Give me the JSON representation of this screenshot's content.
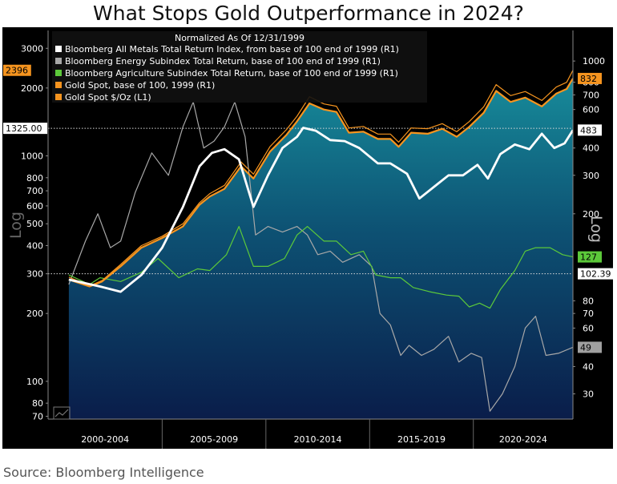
{
  "title": "What Stops Gold Outperformance in 2024?",
  "source": "Source: Bloomberg Intelligence",
  "chart_data": {
    "type": "line",
    "title": "What Stops Gold Outperformance in 2024?",
    "legend_title": "Normalized As Of 12/31/1999",
    "legend_position": "top-left",
    "x_tick_labels": [
      "2000-2004",
      "2005-2009",
      "2010-2014",
      "2015-2019",
      "2020-2024"
    ],
    "x_range": [
      1999.0,
      2024.3
    ],
    "left_axis": {
      "label": "Log",
      "scale": "log",
      "range": [
        68,
        3600
      ],
      "ticks": [
        70,
        80,
        100,
        200,
        300,
        400,
        500,
        600,
        700,
        800,
        1000,
        2000,
        3000
      ],
      "tick_labels": [
        "70",
        "80",
        "100",
        "200",
        "300",
        "400",
        "500",
        "600",
        "700",
        "800",
        "1000",
        "2000",
        "3000"
      ]
    },
    "right_axis": {
      "label": "Log",
      "scale": "log",
      "range": [
        23,
        1380
      ],
      "ticks": [
        30,
        40,
        60,
        70,
        80,
        200,
        300,
        400,
        600,
        700,
        800,
        1000
      ],
      "tick_labels": [
        "30",
        "40",
        "60",
        "70",
        "80",
        "200",
        "300",
        "400",
        "600",
        "700",
        "800",
        "1000"
      ]
    },
    "reference_lines": [
      {
        "axis": "left",
        "value": 1325.0,
        "label": "1325.00"
      },
      {
        "axis": "left",
        "value": 300,
        "label": "102.39"
      }
    ],
    "last_value_labels": [
      {
        "series": "Gold Spot $/Oz",
        "axis": "left",
        "value": 2396,
        "label": "2396",
        "color": "#f5941f",
        "text_color": "#000000"
      },
      {
        "series": "Gold Spot, base of 100",
        "axis": "right",
        "value": 832,
        "label": "832",
        "color": "#f5941f",
        "text_color": "#000000"
      },
      {
        "series": "Bloomberg All Metals Total Return Index",
        "axis": "right",
        "value": 483,
        "label": "483",
        "color": "#ffffff",
        "text_color": "#000000"
      },
      {
        "series": "Bloomberg Agriculture Subindex Total Return",
        "axis": "right",
        "value": 127,
        "label": "127",
        "color": "#5cc93a",
        "text_color": "#000000"
      },
      {
        "series": "Bloomberg Energy Subindex Total Return",
        "axis": "right",
        "value": 49,
        "label": "49",
        "color": "#a0a0a0",
        "text_color": "#000000"
      }
    ],
    "series": [
      {
        "name": "Bloomberg All Metals Total Return Index, from base of 100 end of 1999 (R1)",
        "axis": "right",
        "color": "#ffffff",
        "style": "line-bold",
        "x": [
          2000.0,
          2001.5,
          2002.5,
          2003.5,
          2004.5,
          2005.5,
          2006.3,
          2006.9,
          2007.5,
          2008.2,
          2008.9,
          2009.6,
          2010.3,
          2011.0,
          2011.3,
          2011.9,
          2012.6,
          2013.3,
          2014.0,
          2014.9,
          2015.5,
          2016.3,
          2016.9,
          2017.8,
          2018.3,
          2019.0,
          2019.7,
          2020.2,
          2020.8,
          2021.5,
          2022.2,
          2022.8,
          2023.4,
          2023.9,
          2024.3
        ],
        "y": [
          100,
          93,
          88,
          105,
          140,
          215,
          330,
          380,
          395,
          355,
          215,
          300,
          400,
          450,
          495,
          480,
          435,
          430,
          400,
          340,
          340,
          305,
          235,
          275,
          300,
          300,
          335,
          290,
          375,
          415,
          395,
          465,
          400,
          420,
          483
        ]
      },
      {
        "name": "Bloomberg Energy Subindex Total Return, base of 100 end of 1999 (R1)",
        "axis": "right",
        "color": "#a8a8a8",
        "style": "line",
        "x": [
          2000.0,
          2000.8,
          2001.4,
          2002.0,
          2002.5,
          2003.2,
          2004.0,
          2004.8,
          2005.5,
          2006.0,
          2006.5,
          2007.0,
          2007.5,
          2008.0,
          2008.5,
          2009.0,
          2009.6,
          2010.3,
          2011.0,
          2011.5,
          2012.0,
          2012.6,
          2013.2,
          2014.0,
          2014.6,
          2015.0,
          2015.5,
          2016.0,
          2016.4,
          2017.0,
          2017.6,
          2018.3,
          2018.8,
          2019.4,
          2019.9,
          2020.3,
          2020.9,
          2021.5,
          2022.0,
          2022.5,
          2023.0,
          2023.6,
          2024.3
        ],
        "y": [
          95,
          150,
          200,
          140,
          150,
          250,
          380,
          300,
          500,
          650,
          400,
          430,
          500,
          650,
          450,
          160,
          175,
          165,
          175,
          160,
          130,
          135,
          120,
          130,
          115,
          70,
          62,
          45,
          50,
          45,
          48,
          55,
          42,
          46,
          44,
          25,
          30,
          40,
          60,
          68,
          45,
          46,
          49
        ]
      },
      {
        "name": "Bloomberg Agriculture Subindex Total Return, base of 100 end of 1999 (R1)",
        "axis": "right",
        "color": "#5cc93a",
        "style": "line",
        "x": [
          2000.0,
          2001.0,
          2001.5,
          2002.5,
          2003.5,
          2004.3,
          2005.3,
          2006.2,
          2006.8,
          2007.6,
          2008.2,
          2008.9,
          2009.6,
          2010.4,
          2011.0,
          2011.5,
          2012.3,
          2012.9,
          2013.6,
          2014.2,
          2014.8,
          2015.5,
          2016.0,
          2016.6,
          2017.4,
          2018.2,
          2018.8,
          2019.3,
          2019.8,
          2020.3,
          2020.8,
          2021.5,
          2022.0,
          2022.5,
          2023.2,
          2023.8,
          2024.3
        ],
        "y": [
          105,
          95,
          102,
          98,
          108,
          125,
          102,
          112,
          110,
          130,
          175,
          115,
          115,
          125,
          160,
          175,
          150,
          150,
          130,
          135,
          105,
          102,
          102,
          92,
          88,
          85,
          84,
          75,
          78,
          74,
          90,
          110,
          135,
          140,
          140,
          130,
          127
        ]
      },
      {
        "name": "Gold Spot, base of 100, 1999 (R1)",
        "axis": "right",
        "color": "#f5941f",
        "style": "area-rim",
        "x": [
          2000.0,
          2001.0,
          2001.6,
          2002.5,
          2003.5,
          2004.5,
          2005.5,
          2006.3,
          2006.8,
          2007.5,
          2008.3,
          2008.9,
          2009.7,
          2010.5,
          2011.0,
          2011.6,
          2012.3,
          2012.9,
          2013.5,
          2014.2,
          2014.9,
          2015.5,
          2015.9,
          2016.5,
          2017.3,
          2018.0,
          2018.7,
          2019.3,
          2020.0,
          2020.6,
          2021.3,
          2022.0,
          2022.8,
          2023.5,
          2024.0,
          2024.3
        ],
        "y": [
          100,
          93,
          98,
          115,
          140,
          155,
          175,
          220,
          240,
          260,
          330,
          290,
          385,
          460,
          530,
          640,
          600,
          585,
          470,
          475,
          440,
          440,
          405,
          470,
          465,
          490,
          450,
          500,
          580,
          730,
          650,
          680,
          620,
          710,
          745,
          832
        ]
      },
      {
        "name": "Gold Spot $/Oz (L1)",
        "axis": "left",
        "color": "#f5941f",
        "style": "line",
        "x": [
          2000.0,
          2001.0,
          2001.6,
          2002.5,
          2003.5,
          2004.5,
          2005.5,
          2006.3,
          2006.8,
          2007.5,
          2008.3,
          2008.9,
          2009.7,
          2010.5,
          2011.0,
          2011.6,
          2012.3,
          2012.9,
          2013.5,
          2014.2,
          2014.9,
          2015.5,
          2015.9,
          2016.5,
          2017.3,
          2018.0,
          2018.7,
          2019.3,
          2020.0,
          2020.6,
          2021.3,
          2022.0,
          2022.8,
          2023.5,
          2024.0,
          2024.3
        ],
        "y": [
          290,
          265,
          280,
          330,
          400,
          440,
          500,
          620,
          680,
          740,
          940,
          830,
          1100,
          1310,
          1500,
          1830,
          1700,
          1660,
          1330,
          1350,
          1250,
          1250,
          1150,
          1330,
          1320,
          1390,
          1280,
          1420,
          1650,
          2070,
          1850,
          1930,
          1760,
          2020,
          2120,
          2396
        ]
      }
    ]
  }
}
